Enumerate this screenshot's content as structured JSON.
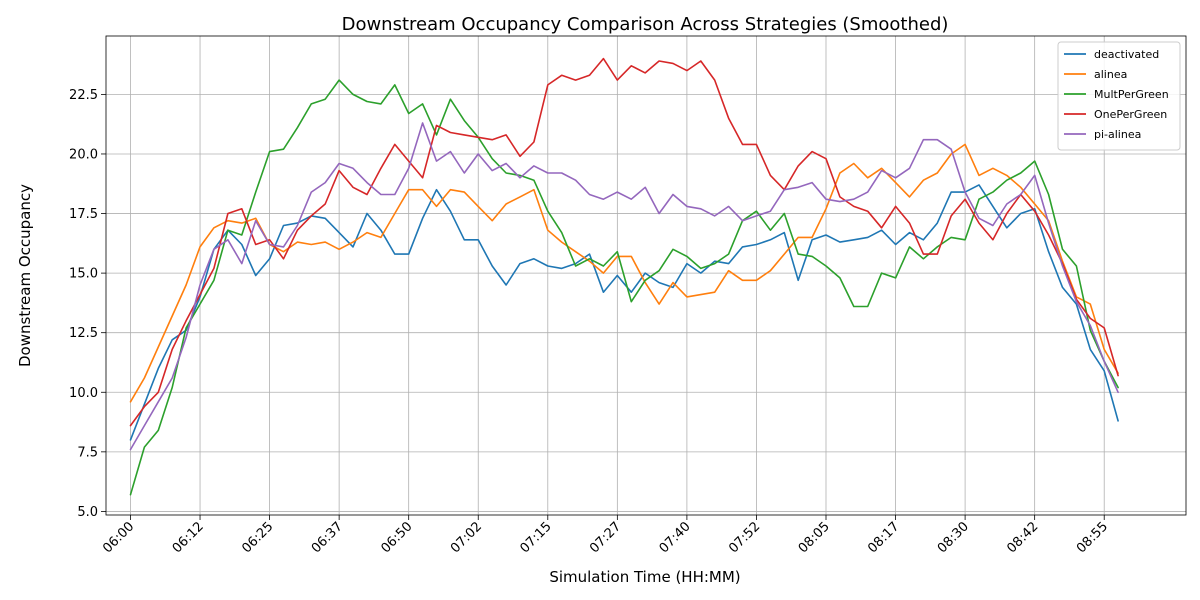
{
  "chart_data": {
    "type": "line",
    "title": "Downstream Occupancy Comparison Across Strategies (Smoothed)",
    "xlabel": "Simulation Time (HH:MM)",
    "ylabel": "Downstream Occupancy",
    "x_tick_labels": [
      "06:00",
      "06:12",
      "06:25",
      "06:37",
      "06:50",
      "07:02",
      "07:15",
      "07:27",
      "07:40",
      "07:52",
      "08:05",
      "08:17",
      "08:30",
      "08:42",
      "08:55"
    ],
    "y_tick_labels": [
      "5.0",
      "7.5",
      "10.0",
      "12.5",
      "15.0",
      "17.5",
      "20.0",
      "22.5"
    ],
    "y_ticks": [
      5.0,
      7.5,
      10.0,
      12.5,
      15.0,
      17.5,
      20.0,
      22.5
    ],
    "ylim": [
      4.85,
      24.95
    ],
    "xlim_minutes": [
      -4.4,
      189.7
    ],
    "grid": true,
    "legend_position": "top-right",
    "x_minutes": [
      0,
      2.5,
      5,
      7.5,
      10,
      12.5,
      15,
      17.5,
      20,
      22.5,
      25,
      27.5,
      30,
      32.5,
      35,
      37.5,
      40,
      42.5,
      45,
      47.5,
      50,
      52.5,
      55,
      57.5,
      60,
      62.5,
      65,
      67.5,
      70,
      72.5,
      75,
      77.5,
      80,
      82.5,
      85,
      87.5,
      90,
      92.5,
      95,
      97.5,
      100,
      102.5,
      105,
      107.5,
      110,
      112.5,
      115,
      117.5,
      120,
      122.5,
      125,
      127.5,
      130,
      132.5,
      135,
      137.5,
      140,
      142.5,
      145,
      147.5,
      150,
      152.5,
      155,
      157.5,
      160,
      162.5,
      165,
      167.5,
      170,
      172.5,
      175,
      177.5
    ],
    "series": [
      {
        "name": "deactivated",
        "color": "#1f77b4",
        "values": [
          8.0,
          9.5,
          11.0,
          12.2,
          12.6,
          14.0,
          16.0,
          16.8,
          16.2,
          14.9,
          15.6,
          17.0,
          17.1,
          17.4,
          17.3,
          16.7,
          16.1,
          17.5,
          16.8,
          15.8,
          15.8,
          17.3,
          18.5,
          17.6,
          16.4,
          16.4,
          15.3,
          14.5,
          15.4,
          15.6,
          15.3,
          15.2,
          15.4,
          15.8,
          14.2,
          14.9,
          14.2,
          15.0,
          14.6,
          14.4,
          15.4,
          15.0,
          15.5,
          15.4,
          16.1,
          16.2,
          16.4,
          16.7,
          14.7,
          16.4,
          16.6,
          16.3,
          16.4,
          16.5,
          16.8,
          16.2,
          16.7,
          16.4,
          17.1,
          18.4,
          18.4,
          18.7,
          17.8,
          16.9,
          17.5,
          17.7,
          15.9,
          14.4,
          13.7,
          11.8,
          10.9,
          8.8
        ]
      },
      {
        "name": "alinea",
        "color": "#ff7f0e",
        "values": [
          9.6,
          10.6,
          11.9,
          13.2,
          14.5,
          16.1,
          16.9,
          17.2,
          17.1,
          17.3,
          16.2,
          15.9,
          16.3,
          16.2,
          16.3,
          16.0,
          16.3,
          16.7,
          16.5,
          17.5,
          18.5,
          18.5,
          17.8,
          18.5,
          18.4,
          17.8,
          17.2,
          17.9,
          18.2,
          18.5,
          16.8,
          16.3,
          15.9,
          15.5,
          15.0,
          15.7,
          15.7,
          14.6,
          13.7,
          14.6,
          14.0,
          14.1,
          14.2,
          15.1,
          14.7,
          14.7,
          15.1,
          15.8,
          16.5,
          16.5,
          17.7,
          19.2,
          19.6,
          19.0,
          19.4,
          18.8,
          18.2,
          18.9,
          19.2,
          20.0,
          20.4,
          19.1,
          19.4,
          19.1,
          18.6,
          17.9,
          17.2,
          15.5,
          14.0,
          13.7,
          11.8,
          10.8
        ]
      },
      {
        "name": "MultPerGreen",
        "color": "#2ca02c",
        "values": [
          5.7,
          7.7,
          8.4,
          10.2,
          12.7,
          13.7,
          14.7,
          16.8,
          16.6,
          18.4,
          20.1,
          20.2,
          21.1,
          22.1,
          22.3,
          23.1,
          22.5,
          22.2,
          22.1,
          22.9,
          21.7,
          22.1,
          20.8,
          22.3,
          21.4,
          20.7,
          19.8,
          19.2,
          19.1,
          18.9,
          17.6,
          16.7,
          15.3,
          15.6,
          15.3,
          15.9,
          13.8,
          14.7,
          15.1,
          16.0,
          15.7,
          15.2,
          15.4,
          15.8,
          17.2,
          17.6,
          16.8,
          17.5,
          15.8,
          15.7,
          15.3,
          14.8,
          13.6,
          13.6,
          15.0,
          14.8,
          16.1,
          15.6,
          16.1,
          16.5,
          16.4,
          18.1,
          18.4,
          18.9,
          19.2,
          19.7,
          18.3,
          16.0,
          15.3,
          12.6,
          11.3,
          10.2
        ]
      },
      {
        "name": "OnePerGreen",
        "color": "#d62728",
        "values": [
          8.6,
          9.4,
          10.0,
          11.8,
          13.0,
          14.1,
          15.2,
          17.5,
          17.7,
          16.2,
          16.4,
          15.6,
          16.8,
          17.4,
          17.9,
          19.3,
          18.6,
          18.3,
          19.4,
          20.4,
          19.7,
          19.0,
          21.2,
          20.9,
          20.8,
          20.7,
          20.6,
          20.8,
          19.9,
          20.5,
          22.9,
          23.3,
          23.1,
          23.3,
          24.0,
          23.1,
          23.7,
          23.4,
          23.9,
          23.8,
          23.5,
          23.9,
          23.1,
          21.5,
          20.4,
          20.4,
          19.1,
          18.5,
          19.5,
          20.1,
          19.8,
          18.2,
          17.8,
          17.6,
          16.9,
          17.8,
          17.1,
          15.8,
          15.8,
          17.4,
          18.1,
          17.1,
          16.4,
          17.5,
          18.3,
          17.6,
          16.6,
          15.4,
          13.9,
          13.1,
          12.7,
          10.7
        ]
      },
      {
        "name": "pi-alinea",
        "color": "#9467bd",
        "values": [
          7.6,
          8.6,
          9.6,
          10.6,
          12.3,
          14.5,
          16.0,
          16.4,
          15.4,
          17.2,
          16.2,
          16.1,
          17.0,
          18.4,
          18.8,
          19.6,
          19.4,
          18.8,
          18.3,
          18.3,
          19.4,
          21.3,
          19.7,
          20.1,
          19.2,
          20.0,
          19.3,
          19.6,
          19.0,
          19.5,
          19.2,
          19.2,
          18.9,
          18.3,
          18.1,
          18.4,
          18.1,
          18.6,
          17.5,
          18.3,
          17.8,
          17.7,
          17.4,
          17.8,
          17.2,
          17.4,
          17.6,
          18.5,
          18.6,
          18.8,
          18.1,
          18.0,
          18.1,
          18.4,
          19.3,
          19.0,
          19.4,
          20.6,
          20.6,
          20.2,
          18.4,
          17.3,
          17.0,
          17.9,
          18.3,
          19.1,
          17.1,
          15.3,
          13.8,
          12.8,
          11.3,
          10.0
        ]
      }
    ]
  }
}
